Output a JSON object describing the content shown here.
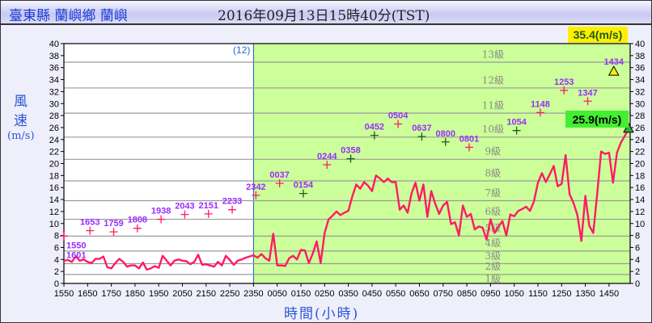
{
  "header": {
    "station": "臺東縣 蘭嶼鄉 蘭嶼",
    "datetime": "2016年09月13日15時40分(TST)"
  },
  "chart_data": {
    "type": "line",
    "ylabel_chars": [
      "風",
      "速"
    ],
    "ylabel_unit": "(m/s)",
    "xlabel": "時間(小時)",
    "ylim": [
      0,
      40
    ],
    "yticks": [
      0,
      2,
      4,
      6,
      8,
      10,
      12,
      14,
      16,
      18,
      20,
      22,
      24,
      26,
      28,
      30,
      32,
      34,
      36,
      38,
      40
    ],
    "xticks": [
      "1550",
      "1650",
      "1750",
      "1850",
      "1950",
      "2050",
      "2150",
      "2250",
      "2350",
      "0050",
      "0150",
      "0250",
      "0350",
      "0450",
      "0550",
      "0650",
      "0750",
      "0850",
      "0950",
      "1050",
      "1150",
      "1250",
      "1350",
      "1450"
    ],
    "x_start": "1550",
    "x_end": "1540",
    "day_marker": "(12)",
    "beaufort": {
      "thresholds": [
        1.5,
        3.3,
        5.4,
        7.9,
        10.7,
        13.8,
        17.1,
        20.7,
        24.4,
        28.4,
        32.6,
        36.9
      ],
      "labels": [
        "1級",
        "2級",
        "3級",
        "4級",
        "5級",
        "6級",
        "7級",
        "8級",
        "9級",
        "10級",
        "11級",
        "12級",
        "13級"
      ]
    },
    "colors": {
      "night_bg": "#ffffff",
      "day_bg": "#ccff99",
      "wind_line": "#ff1a66",
      "gust_label": "#9a2cff",
      "grid": "#9a9a9a"
    },
    "wind_speed": [
      3.8,
      3.9,
      3.6,
      4.5,
      3.8,
      4.0,
      3.6,
      3.4,
      4.1,
      4.1,
      4.5,
      2.7,
      2.5,
      3.4,
      4.1,
      3.6,
      2.8,
      3.0,
      3.0,
      2.5,
      3.5,
      2.3,
      2.5,
      2.9,
      2.6,
      4.6,
      3.8,
      3.0,
      3.8,
      4.0,
      3.8,
      3.7,
      3.2,
      3.6,
      4.8,
      3.1,
      3.2,
      3.0,
      2.8,
      3.6,
      3.0,
      4.6,
      3.9,
      3.1,
      3.8,
      4.0,
      4.3,
      4.5,
      4.7,
      4.3,
      4.9,
      4.2,
      3.8,
      8.3,
      3.0,
      3.0,
      2.9,
      4.2,
      4.6,
      4.0,
      5.6,
      5.5,
      3.4,
      5.0,
      7.0,
      3.4,
      8.4,
      10.7,
      11.3,
      12.0,
      11.4,
      11.8,
      12.1,
      14.5,
      16.5,
      15.8,
      16.9,
      16.3,
      15.4,
      18.0,
      17.5,
      16.9,
      17.5,
      16.9,
      16.9,
      12.3,
      13.0,
      11.8,
      15.0,
      16.8,
      13.8,
      16.5,
      11.1,
      15.4,
      13.3,
      11.6,
      13.0,
      13.6,
      9.9,
      10.2,
      8.0,
      13.0,
      11.1,
      11.6,
      9.0,
      9.5,
      9.3,
      7.3,
      10.7,
      8.4,
      9.5,
      10.4,
      8.0,
      11.5,
      11.2,
      12.1,
      12.4,
      12.8,
      12.1,
      13.7,
      16.8,
      18.4,
      16.9,
      18.2,
      19.6,
      16.2,
      16.6,
      21.4,
      14.9,
      13.4,
      11.4,
      7.1,
      14.6,
      9.6,
      8.4,
      15.0,
      22.0,
      21.6,
      21.8,
      16.8,
      21.8,
      23.5,
      24.6,
      25.9
    ],
    "gusts": [
      {
        "hour": 0,
        "label": "1550",
        "value": 7.9,
        "color": "#ff1a66"
      },
      {
        "hour": 0,
        "label": "1601",
        "value": 7.9,
        "color": "#ff1a66"
      },
      {
        "hour": 1,
        "label": "1653",
        "value": 8.8,
        "color": "#ff1a66"
      },
      {
        "hour": 2,
        "label": "1759",
        "value": 8.6,
        "color": "#ff1a66"
      },
      {
        "hour": 3,
        "label": "1808",
        "value": 9.2,
        "color": "#ff1a66"
      },
      {
        "hour": 4,
        "label": "1938",
        "value": 10.7,
        "color": "#ff1a66"
      },
      {
        "hour": 5,
        "label": "2043",
        "value": 11.5,
        "color": "#ff1a66"
      },
      {
        "hour": 6,
        "label": "2151",
        "value": 11.6,
        "color": "#ff1a66"
      },
      {
        "hour": 7,
        "label": "2233",
        "value": 12.3,
        "color": "#ff1a66"
      },
      {
        "hour": 8,
        "label": "2342",
        "value": 14.7,
        "color": "#ff1a66"
      },
      {
        "hour": 9,
        "label": "0037",
        "value": 16.7,
        "color": "#ff1a66"
      },
      {
        "hour": 10,
        "label": "0154",
        "value": 15.0,
        "color": "#1d5a1d"
      },
      {
        "hour": 11,
        "label": "0244",
        "value": 19.8,
        "color": "#ff1a66"
      },
      {
        "hour": 12,
        "label": "0358",
        "value": 20.8,
        "color": "#1d5a1d"
      },
      {
        "hour": 13,
        "label": "0452",
        "value": 24.7,
        "color": "#1d5a1d"
      },
      {
        "hour": 14,
        "label": "0504",
        "value": 26.6,
        "color": "#ff1a66"
      },
      {
        "hour": 15,
        "label": "0637",
        "value": 24.5,
        "color": "#1d5a1d"
      },
      {
        "hour": 16,
        "label": "0800",
        "value": 23.6,
        "color": "#1d5a1d"
      },
      {
        "hour": 17,
        "label": "0801",
        "value": 22.7,
        "color": "#ff1a66"
      },
      {
        "hour": 19,
        "label": "1054",
        "value": 25.5,
        "color": "#1d5a1d"
      },
      {
        "hour": 20,
        "label": "1148",
        "value": 28.5,
        "color": "#ff1a66"
      },
      {
        "hour": 21,
        "label": "1253",
        "value": 32.2,
        "color": "#ff1a66"
      },
      {
        "hour": 22,
        "label": "1347",
        "value": 30.4,
        "color": "#ff1a66"
      }
    ],
    "max_gust": {
      "hour": 23,
      "label": "1434",
      "value": 35.4,
      "text": "35.4(m/s)",
      "color": "#ffee00"
    },
    "current": {
      "value": 25.9,
      "text": "25.9(m/s)",
      "color": "#44ee33"
    }
  }
}
